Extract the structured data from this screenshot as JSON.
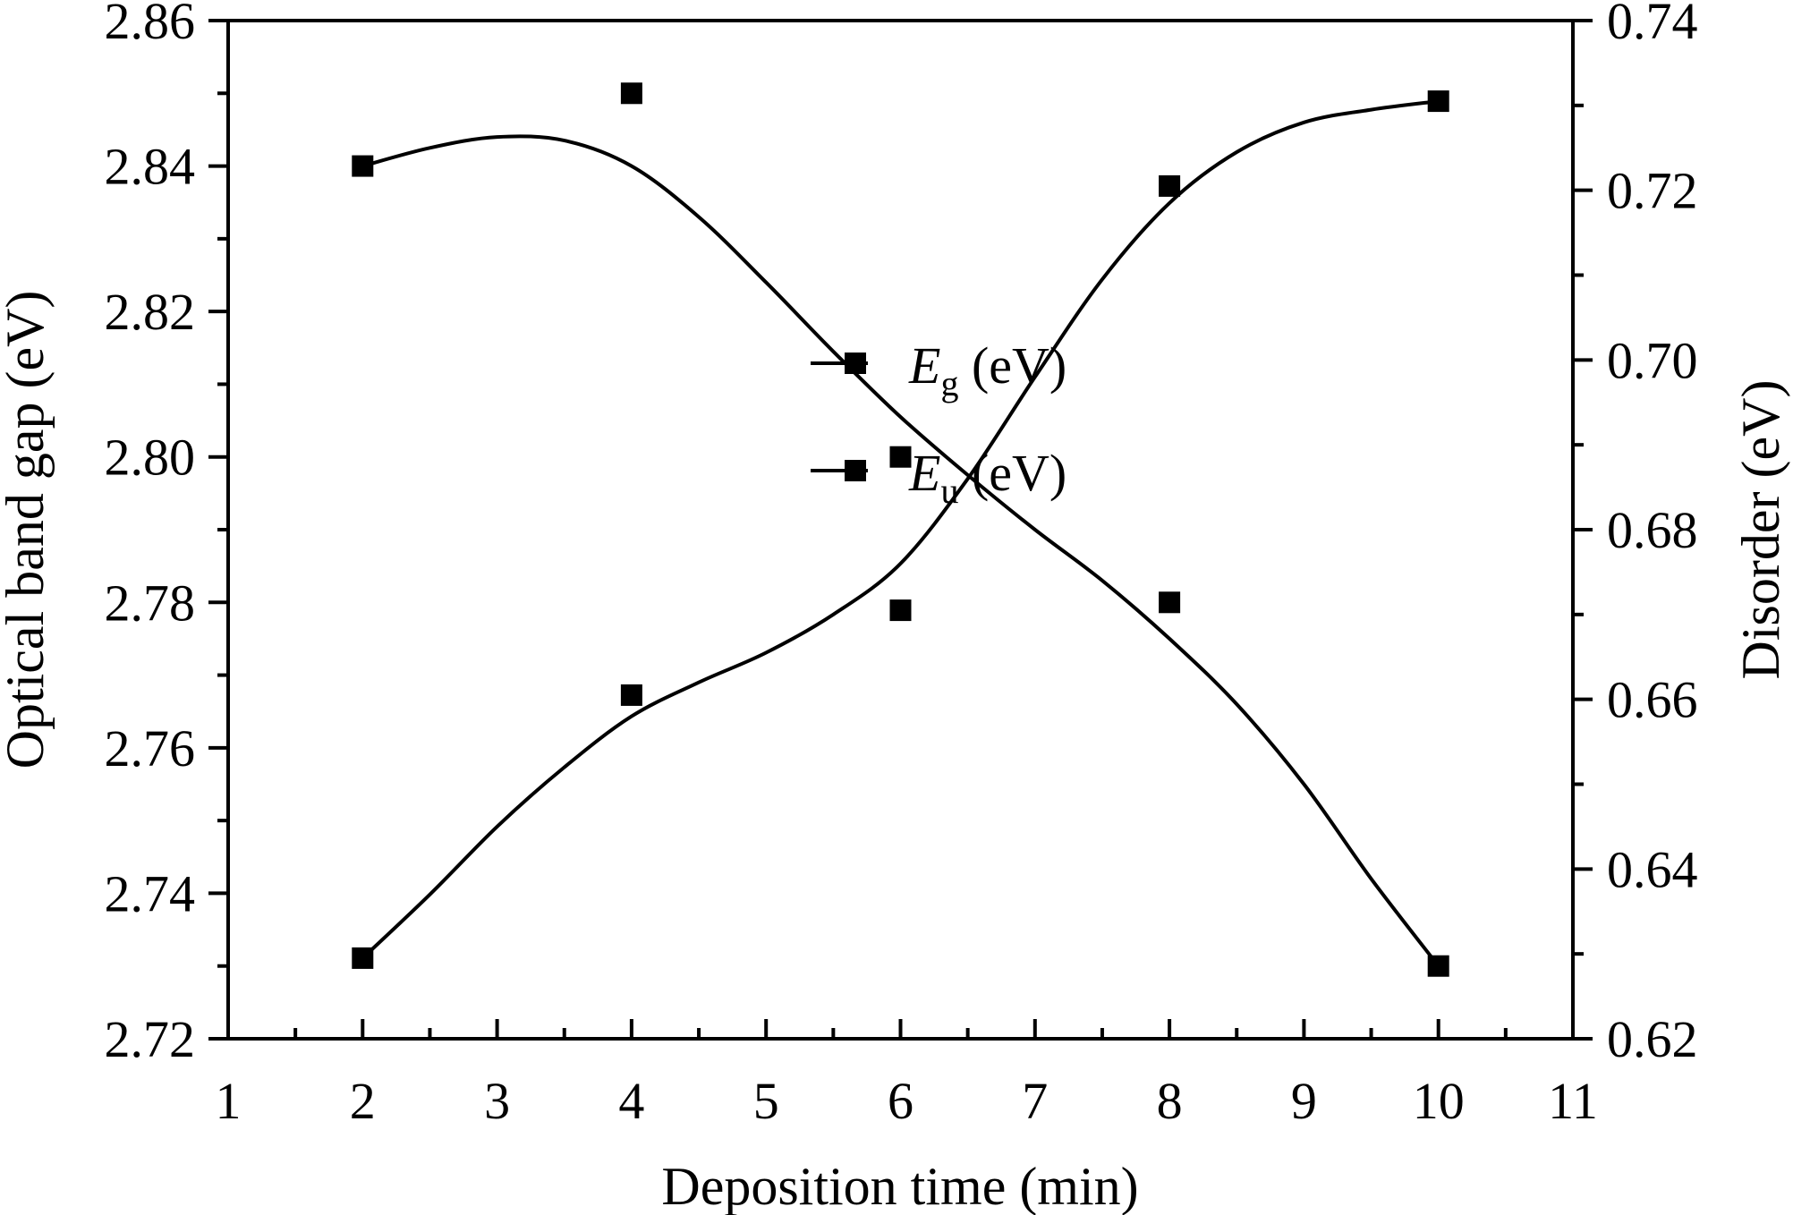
{
  "chart_data": {
    "type": "scatter",
    "xlabel": "Deposition time (min)",
    "ylabel_left": "Optical band gap (eV)",
    "ylabel_right": "Disorder (eV)",
    "xlim": [
      1,
      11
    ],
    "x_ticks": [
      "1",
      "2",
      "3",
      "4",
      "5",
      "6",
      "7",
      "8",
      "9",
      "10",
      "11"
    ],
    "ylim_left": [
      2.72,
      2.86
    ],
    "y_ticks_left": [
      "2.72",
      "2.74",
      "2.76",
      "2.78",
      "2.80",
      "2.82",
      "2.84",
      "2.86"
    ],
    "ylim_right": [
      0.62,
      0.74
    ],
    "y_ticks_right": [
      "0.62",
      "0.64",
      "0.66",
      "0.68",
      "0.70",
      "0.72",
      "0.74"
    ],
    "grid": false,
    "legend_position": "center",
    "series": [
      {
        "name_main": "E",
        "name_sub": "g",
        "name_unit": " (eV)",
        "axis": "left",
        "marker": "square",
        "color": "#000000",
        "x": [
          2,
          4,
          6,
          8,
          10
        ],
        "y": [
          2.84,
          2.85,
          2.8,
          2.78,
          2.73
        ],
        "fit": [
          [
            2,
            2.84
          ],
          [
            2.5,
            2.8425
          ],
          [
            3,
            2.844
          ],
          [
            3.5,
            2.8435
          ],
          [
            4,
            2.84
          ],
          [
            4.5,
            2.833
          ],
          [
            5,
            2.824
          ],
          [
            5.5,
            2.8145
          ],
          [
            6,
            2.8055
          ],
          [
            6.5,
            2.7975
          ],
          [
            7,
            2.79
          ],
          [
            7.5,
            2.783
          ],
          [
            8,
            2.775
          ],
          [
            8.5,
            2.766
          ],
          [
            9,
            2.755
          ],
          [
            9.5,
            2.742
          ],
          [
            10,
            2.73
          ]
        ]
      },
      {
        "name_main": "E",
        "name_sub": "u",
        "name_unit": " (eV)",
        "axis": "right",
        "marker": "square",
        "color": "#000000",
        "x": [
          2,
          4,
          6,
          8,
          10
        ],
        "y": [
          0.6295,
          0.6605,
          0.6705,
          0.7205,
          0.7305
        ],
        "fit": [
          [
            2,
            0.6295
          ],
          [
            2.5,
            0.637
          ],
          [
            3,
            0.645
          ],
          [
            3.5,
            0.652
          ],
          [
            4,
            0.658
          ],
          [
            4.5,
            0.662
          ],
          [
            5,
            0.6655
          ],
          [
            5.5,
            0.67
          ],
          [
            6,
            0.676
          ],
          [
            6.5,
            0.686
          ],
          [
            7,
            0.698
          ],
          [
            7.5,
            0.7095
          ],
          [
            8,
            0.7185
          ],
          [
            8.5,
            0.7245
          ],
          [
            9,
            0.728
          ],
          [
            9.5,
            0.7295
          ],
          [
            10,
            0.7305
          ]
        ]
      }
    ]
  }
}
